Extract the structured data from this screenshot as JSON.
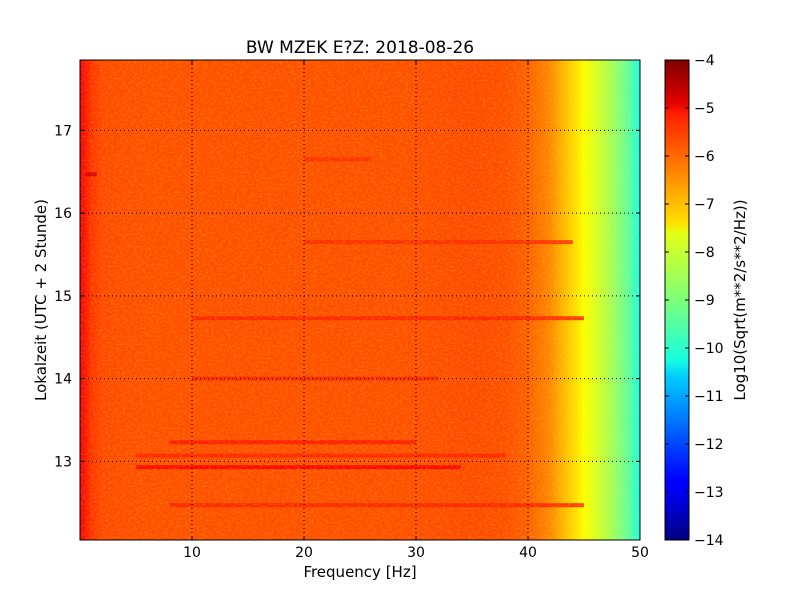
{
  "chart_data": {
    "type": "heatmap",
    "title": "BW MZEK E?Z: 2018-08-26",
    "xlabel": "Frequency [Hz]",
    "ylabel": "Lokalzeit (UTC + 2 Stunde)",
    "xlim": [
      0,
      50
    ],
    "ylim": [
      17.85,
      12.05
    ],
    "x_ticks": [
      10,
      20,
      30,
      40,
      50
    ],
    "x_tick_labels": [
      "10",
      "20",
      "30",
      "40",
      "50"
    ],
    "y_ticks": [
      13,
      14,
      15,
      16,
      17
    ],
    "y_tick_labels": [
      "13",
      "14",
      "15",
      "16",
      "17"
    ],
    "grid": true,
    "colormap": "jet",
    "colorbar": {
      "label": "Log10(Sqrt(m**2/s**2/Hz))",
      "range": [
        -14,
        -4
      ],
      "ticks": [
        -4,
        -5,
        -6,
        -7,
        -8,
        -9,
        -10,
        -11,
        -12,
        -13,
        -14
      ],
      "tick_labels": [
        "−4",
        "−5",
        "−6",
        "−7",
        "−8",
        "−9",
        "−10",
        "−11",
        "−12",
        "−13",
        "−14"
      ]
    },
    "spectral_profile": {
      "frequency_hz": [
        0,
        0.5,
        1,
        2,
        5,
        10,
        20,
        30,
        35,
        38,
        40,
        42,
        43,
        44,
        45,
        46,
        47,
        48,
        49,
        50
      ],
      "log_amplitude": [
        -5.3,
        -5.5,
        -5.8,
        -6.0,
        -6.05,
        -6.05,
        -6.05,
        -6.05,
        -6.0,
        -6.05,
        -6.2,
        -6.6,
        -7.0,
        -7.35,
        -7.75,
        -8.1,
        -8.45,
        -8.85,
        -9.3,
        -10.0
      ]
    },
    "bright_lines": [
      {
        "time": 12.93,
        "freq_range": [
          5,
          34
        ],
        "level": -5.2
      },
      {
        "time": 12.47,
        "freq_range": [
          8,
          45
        ],
        "level": -5.6
      },
      {
        "time": 13.07,
        "freq_range": [
          5,
          38
        ],
        "level": -5.6
      },
      {
        "time": 13.23,
        "freq_range": [
          8,
          30
        ],
        "level": -5.5
      },
      {
        "time": 14.0,
        "freq_range": [
          10,
          32
        ],
        "level": -5.6
      },
      {
        "time": 14.73,
        "freq_range": [
          10,
          45
        ],
        "level": -5.6
      },
      {
        "time": 15.65,
        "freq_range": [
          20,
          44
        ],
        "level": -5.7
      },
      {
        "time": 16.47,
        "freq_range": [
          0.5,
          1.5
        ],
        "level": -4.9
      },
      {
        "time": 16.65,
        "freq_range": [
          20,
          26
        ],
        "level": -5.7
      }
    ]
  }
}
